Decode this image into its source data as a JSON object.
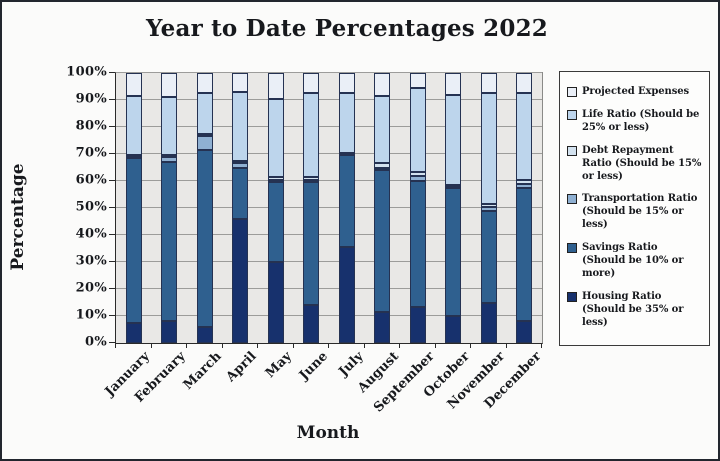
{
  "chart_data": {
    "type": "bar",
    "stacked": true,
    "title": "Year to Date Percentages 2022",
    "xlabel": "Month",
    "ylabel": "Percentage",
    "ylim": [
      0,
      100
    ],
    "ytick_step": 10,
    "ytick_labels": [
      "0%",
      "10%",
      "20%",
      "30%",
      "40%",
      "50%",
      "60%",
      "70%",
      "80%",
      "90%",
      "100%"
    ],
    "grid": true,
    "legend_position": "right",
    "plot_bg_color": "#e9e8e6",
    "gridline_color": "#9c9c9a",
    "bar_outline_color": "#253252",
    "categories": [
      "January",
      "February",
      "March",
      "April",
      "May",
      "June",
      "July",
      "August",
      "September",
      "October",
      "November",
      "December"
    ],
    "series": [
      {
        "name": "Housing Ratio (Should be 35% or less)",
        "color": "#17316d",
        "values": [
          7.5,
          8,
          6,
          46,
          30,
          14,
          35.5,
          11.5,
          13.5,
          10,
          15,
          8
        ]
      },
      {
        "name": "Savings Ratio (Should be 10% or more)",
        "color": "#2f608f",
        "values": [
          61,
          59,
          65.5,
          19,
          29.5,
          45.5,
          34,
          52.5,
          46.5,
          47.5,
          34,
          49.5
        ]
      },
      {
        "name": "Transportation Ratio (Should be 15% or less)",
        "color": "#8fb0d2",
        "values": [
          0.5,
          2,
          5,
          1.5,
          1,
          1,
          0.5,
          1,
          2,
          0.5,
          1.5,
          1.5
        ]
      },
      {
        "name": "Debt Repayment Ratio (Should be 15% or less)",
        "color": "#d3e2ef",
        "values": [
          0.5,
          0.5,
          1,
          1,
          1,
          1,
          0.5,
          1.5,
          1.5,
          0.5,
          1,
          1.5
        ]
      },
      {
        "name": "Life Ratio (Should be 25% or less)",
        "color": "#bdd5ec",
        "values": [
          22,
          21.5,
          15,
          25.5,
          29,
          31,
          22,
          25,
          31,
          33.5,
          41,
          32
        ]
      },
      {
        "name": "Projected Expenses",
        "color": "#eaeff7",
        "values": [
          8.5,
          9,
          7.5,
          7,
          9.5,
          7.5,
          7.5,
          8.5,
          5.5,
          8,
          7.5,
          7.5
        ]
      }
    ]
  }
}
